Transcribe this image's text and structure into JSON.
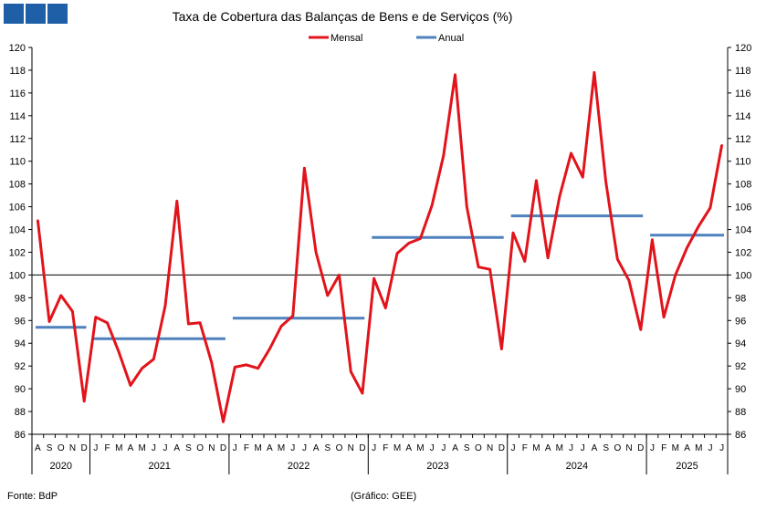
{
  "logo": {
    "color": "#1f5fa8"
  },
  "chart_data": {
    "type": "line",
    "title": "Taxa de Cobertura das Balanças de Bens e de Serviços (%)",
    "ylim": [
      86,
      120
    ],
    "yticks": [
      86,
      88,
      90,
      92,
      94,
      96,
      98,
      100,
      102,
      104,
      106,
      108,
      110,
      112,
      114,
      116,
      118,
      120
    ],
    "reference_line": 100,
    "months": [
      "A",
      "S",
      "O",
      "N",
      "D",
      "J",
      "F",
      "M",
      "A",
      "M",
      "J",
      "J",
      "A",
      "S",
      "O",
      "N",
      "D",
      "J",
      "F",
      "M",
      "A",
      "M",
      "J",
      "J",
      "A",
      "S",
      "O",
      "N",
      "D",
      "J",
      "F",
      "M",
      "A",
      "M",
      "J",
      "J",
      "A",
      "S",
      "O",
      "N",
      "D",
      "J",
      "F",
      "M",
      "A",
      "M",
      "J",
      "J",
      "A",
      "S",
      "O",
      "N",
      "D",
      "J",
      "F",
      "M",
      "A",
      "M",
      "J",
      "J"
    ],
    "years": [
      {
        "label": "2020",
        "start": 0,
        "end": 5
      },
      {
        "label": "2021",
        "start": 5,
        "end": 17
      },
      {
        "label": "2022",
        "start": 17,
        "end": 29
      },
      {
        "label": "2023",
        "start": 29,
        "end": 41
      },
      {
        "label": "2024",
        "start": 41,
        "end": 53
      },
      {
        "label": "2025",
        "start": 53,
        "end": 60
      }
    ],
    "series": [
      {
        "name": "Mensal",
        "color": "#e2141b",
        "values": [
          104.8,
          95.9,
          98.2,
          96.8,
          88.9,
          96.3,
          95.8,
          93.2,
          90.3,
          91.8,
          92.6,
          97.3,
          106.5,
          95.7,
          95.8,
          92.3,
          87.1,
          91.9,
          92.1,
          91.8,
          93.5,
          95.5,
          96.4,
          109.4,
          102.0,
          98.2,
          100.0,
          91.5,
          89.6,
          99.7,
          97.1,
          101.9,
          102.8,
          103.2,
          106.1,
          110.5,
          117.6,
          106.0,
          100.7,
          100.5,
          93.5,
          103.7,
          101.2,
          108.3,
          101.5,
          106.9,
          110.7,
          108.6,
          117.8,
          108.2,
          101.4,
          99.5,
          95.2,
          103.1,
          96.3,
          100.0,
          102.4,
          104.3,
          105.9,
          111.4
        ]
      },
      {
        "name": "Anual",
        "color": "#4f81bd",
        "segments": [
          {
            "start": 0,
            "end": 5,
            "value": 95.4
          },
          {
            "start": 5,
            "end": 17,
            "value": 94.4
          },
          {
            "start": 17,
            "end": 29,
            "value": 96.2
          },
          {
            "start": 29,
            "end": 41,
            "value": 103.3
          },
          {
            "start": 41,
            "end": 53,
            "value": 105.2
          },
          {
            "start": 53,
            "end": 60,
            "value": 103.5
          }
        ]
      }
    ],
    "legend": {
      "position": "top-center",
      "entries": [
        "Mensal",
        "Anual"
      ]
    }
  },
  "footer": {
    "source": "Fonte: BdP",
    "credit": "(Gráfico: GEE)"
  }
}
